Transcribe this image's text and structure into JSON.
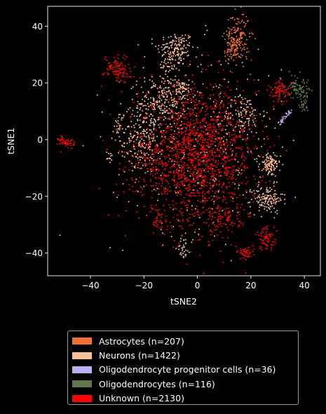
{
  "chart_data": {
    "type": "scatter",
    "title": "",
    "xlabel": "tSNE2",
    "ylabel": "tSNE1",
    "xlim": [
      -56,
      46
    ],
    "ylim": [
      -48,
      47
    ],
    "xticks": [
      -40,
      -20,
      0,
      20,
      40
    ],
    "yticks": [
      -40,
      -20,
      0,
      20,
      40
    ],
    "tick_labels_x": [
      "−40",
      "−20",
      "0",
      "20",
      "40"
    ],
    "tick_labels_y": [
      "−40",
      "−20",
      "0",
      "20",
      "40"
    ],
    "grid": false,
    "legend_position": "below",
    "series": [
      {
        "name": "Astrocytes (n=207)",
        "color": "#f07038",
        "n": 207,
        "clusters": [
          {
            "cx": 15,
            "cy": 36,
            "sx": 2.3,
            "sy": 4.5,
            "n": 170
          },
          {
            "cx": 13,
            "cy": 31,
            "sx": 1.5,
            "sy": 1.5,
            "n": 37
          }
        ]
      },
      {
        "name": "Neurons (n=1422)",
        "color": "#f8c098",
        "n": 1422,
        "clusters": [
          {
            "cx": -8,
            "cy": 32,
            "sx": 3.5,
            "sy": 3.0,
            "n": 150
          },
          {
            "cx": -11,
            "cy": 26,
            "sx": 1.7,
            "sy": 1.5,
            "n": 25
          },
          {
            "cx": -13,
            "cy": 14,
            "sx": 4.5,
            "sy": 4.5,
            "n": 230
          },
          {
            "cx": -20,
            "cy": 0,
            "sx": 3.5,
            "sy": 6.0,
            "n": 200
          },
          {
            "cx": -29,
            "cy": 5,
            "sx": 1.0,
            "sy": 2.5,
            "n": 35
          },
          {
            "cx": 27,
            "cy": -9,
            "sx": 2.0,
            "sy": 2.0,
            "n": 110
          },
          {
            "cx": 26,
            "cy": -21,
            "sx": 3.0,
            "sy": 2.5,
            "n": 140
          },
          {
            "cx": 17,
            "cy": 9,
            "sx": 3.5,
            "sy": 3.5,
            "n": 110
          },
          {
            "cx": -6,
            "cy": 18,
            "sx": 2.0,
            "sy": 1.5,
            "n": 50
          },
          {
            "cx": -5,
            "cy": -38,
            "sx": 1.2,
            "sy": 2.0,
            "n": 30
          },
          {
            "cx": -33,
            "cy": -6,
            "sx": 0.8,
            "sy": 1.0,
            "n": 12
          },
          {
            "cx": 0,
            "cy": 0,
            "sx": 16,
            "sy": 16,
            "n": 330
          }
        ]
      },
      {
        "name": "Oligodendrocyte progenitor cells (n=36)",
        "color": "#b8b0f0",
        "n": 36,
        "clusters": [
          {
            "line": [
              30,
              5,
              35,
              10
            ],
            "n": 36
          }
        ]
      },
      {
        "name": "Oligodendrocytes (n=116)",
        "color": "#607850",
        "n": 116,
        "clusters": [
          {
            "cx": 37,
            "cy": 19,
            "sx": 2.3,
            "sy": 2.0,
            "n": 70
          },
          {
            "cx": 39.5,
            "cy": 14,
            "sx": 1.0,
            "sy": 2.5,
            "n": 46
          }
        ]
      },
      {
        "name": "Unknown (n=2130)",
        "color": "#ff0000",
        "n": 2130,
        "clusters": [
          {
            "cx": 0,
            "cy": -6,
            "sx": 11,
            "sy": 12,
            "n": 1620
          },
          {
            "cx": -30,
            "cy": 25,
            "sx": 2.5,
            "sy": 2.5,
            "n": 110
          },
          {
            "cx": 31,
            "cy": 17,
            "sx": 2.0,
            "sy": 2.0,
            "n": 80
          },
          {
            "cx": -49,
            "cy": -1,
            "sx": 1.5,
            "sy": 1.2,
            "n": 50
          },
          {
            "cx": 10,
            "cy": -28,
            "sx": 3.0,
            "sy": 2.5,
            "n": 80
          },
          {
            "cx": 26,
            "cy": -35,
            "sx": 2.0,
            "sy": 2.0,
            "n": 70
          },
          {
            "cx": 18,
            "cy": -40,
            "sx": 1.5,
            "sy": 1.0,
            "n": 45
          },
          {
            "cx": -15,
            "cy": -29,
            "sx": 1.0,
            "sy": 1.5,
            "n": 25
          },
          {
            "cx": -20,
            "cy": -8,
            "sx": 4.0,
            "sy": 5.0,
            "n": 50
          }
        ]
      }
    ]
  }
}
